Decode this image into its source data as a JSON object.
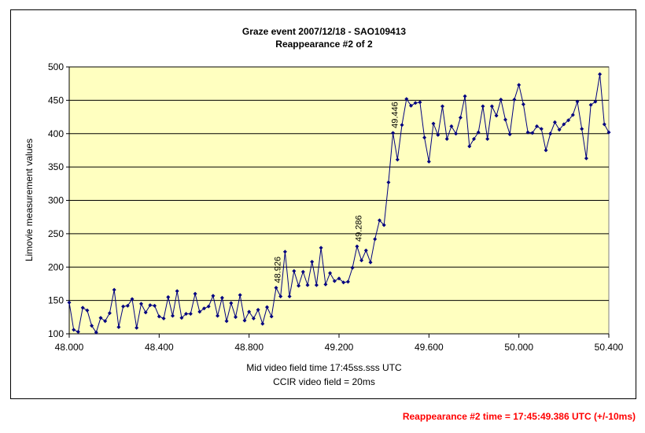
{
  "footer": {
    "note": "Reappearance #2 time = 17:45:49.386 UTC (+/-10ms)"
  },
  "colors": {
    "plot_bg": "#ffffc0",
    "line": "#000080",
    "grid": "#000000",
    "footer": "#ff0000"
  },
  "chart_data": {
    "type": "line",
    "title": "Graze event 2007/12/18 - SAO109413",
    "subtitle": "Reappearance #2 of 2",
    "xlabel": "Mid video field time 17:45ss.sss UTC",
    "xlabel2": "CCIR video field = 20ms",
    "ylabel": "Limovie measurement values",
    "xlim": [
      48.0,
      50.4
    ],
    "ylim": [
      100,
      500
    ],
    "grid": "horizontal",
    "legend": "none",
    "x_ticks": [
      "48.000",
      "48.400",
      "48.800",
      "49.200",
      "49.600",
      "50.000",
      "50.400"
    ],
    "y_ticks": [
      "100",
      "150",
      "200",
      "250",
      "300",
      "350",
      "400",
      "450",
      "500"
    ],
    "x_start": 48.0,
    "x_step": 0.02,
    "annotations": [
      {
        "x": 48.926,
        "y": 169,
        "text": "48.926"
      },
      {
        "x": 49.286,
        "y": 231,
        "text": "49.286"
      },
      {
        "x": 49.446,
        "y": 401,
        "text": "49.446"
      }
    ],
    "series": [
      {
        "values": [
          147,
          106,
          103,
          139,
          135,
          112,
          102,
          124,
          119,
          131,
          166,
          110,
          141,
          142,
          152,
          109,
          145,
          132,
          143,
          142,
          126,
          123,
          155,
          127,
          164,
          124,
          130,
          130,
          160,
          133,
          138,
          141,
          157,
          127,
          154,
          119,
          146,
          125,
          158,
          120,
          133,
          123,
          136,
          115,
          140,
          126,
          169,
          156,
          223,
          156,
          194,
          172,
          193,
          173,
          208,
          173,
          229,
          174,
          191,
          179,
          183,
          177,
          178,
          199,
          231,
          210,
          225,
          207,
          242,
          270,
          263,
          327,
          401,
          361,
          413,
          452,
          442,
          446,
          447,
          394,
          358,
          415,
          398,
          441,
          392,
          411,
          400,
          424,
          456,
          381,
          392,
          402,
          441,
          392,
          441,
          427,
          451,
          421,
          399,
          451,
          473,
          444,
          402,
          401,
          411,
          407,
          375,
          400,
          417,
          406,
          414,
          420,
          428,
          448,
          407,
          363,
          443,
          448,
          489,
          414,
          402
        ]
      }
    ]
  }
}
